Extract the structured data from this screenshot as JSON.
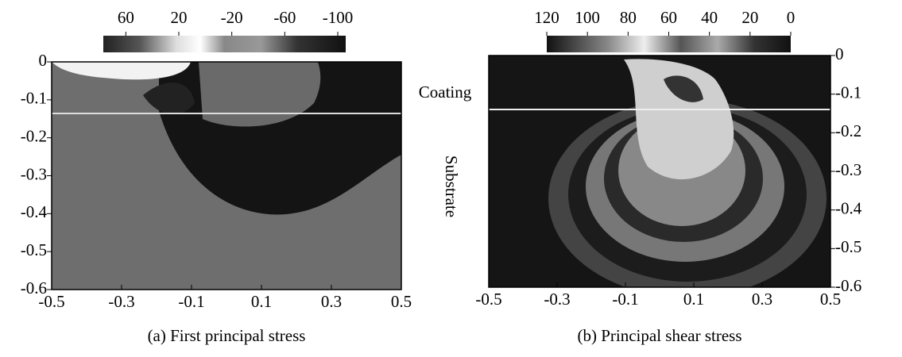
{
  "chart_data": [
    {
      "type": "contour",
      "caption": "(a) First principal stress",
      "xlim": [
        -0.5,
        0.5
      ],
      "ylim": [
        -0.6,
        0
      ],
      "xticks": [
        -0.5,
        -0.3,
        -0.1,
        0.1,
        0.3,
        0.5
      ],
      "yticks": [
        0,
        -0.1,
        -0.2,
        -0.3,
        -0.4,
        -0.5,
        -0.6
      ],
      "y_axis_side": "left",
      "colorbar": {
        "lim": [
          77,
          -106
        ],
        "ticks": [
          60,
          20,
          -20,
          -60,
          -100
        ]
      }
    },
    {
      "type": "contour",
      "caption": "(b) Principal shear stress",
      "xlim": [
        -0.5,
        0.5
      ],
      "ylim": [
        -0.6,
        0
      ],
      "xticks": [
        -0.5,
        -0.3,
        -0.1,
        0.1,
        0.3,
        0.5
      ],
      "yticks": [
        0,
        -0.1,
        -0.2,
        -0.3,
        -0.4,
        -0.5,
        -0.6
      ],
      "y_axis_side": "right",
      "colorbar": {
        "lim": [
          120,
          0
        ],
        "ticks": [
          120,
          100,
          80,
          60,
          40,
          20,
          0
        ]
      },
      "annotations": [
        "Coating",
        "Substrate"
      ]
    }
  ]
}
